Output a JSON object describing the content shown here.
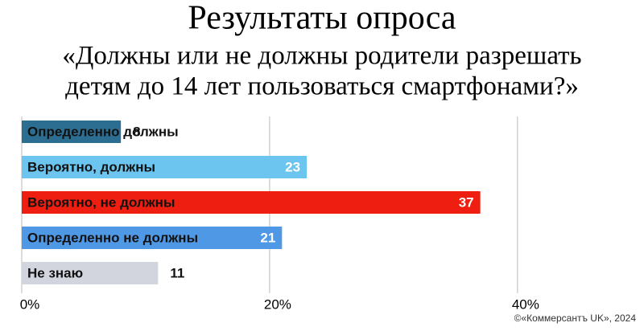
{
  "chart_data": {
    "type": "hbar",
    "title": "Результаты опроса",
    "subtitle": [
      "«Должны или не должны родители разрешать",
      "детям до 14 лет пользоваться смартфонами?»"
    ],
    "categories": [
      "Определенно должны",
      "Вероятно, должны",
      "Вероятно, не должны",
      "Определенно не должны",
      "Не знаю"
    ],
    "values": [
      8,
      23,
      37,
      21,
      11
    ],
    "colors": [
      "#2c6e91",
      "#6cc5ef",
      "#ee1f10",
      "#4e98e6",
      "#d3d5de"
    ],
    "xlim": [
      0,
      48
    ],
    "xticks": [
      {
        "value": 0,
        "label": "0%"
      },
      {
        "value": 20,
        "label": "20%"
      },
      {
        "value": 40,
        "label": "40%"
      }
    ],
    "grid": true,
    "source": "©«Коммерсантъ UK», 2024"
  }
}
